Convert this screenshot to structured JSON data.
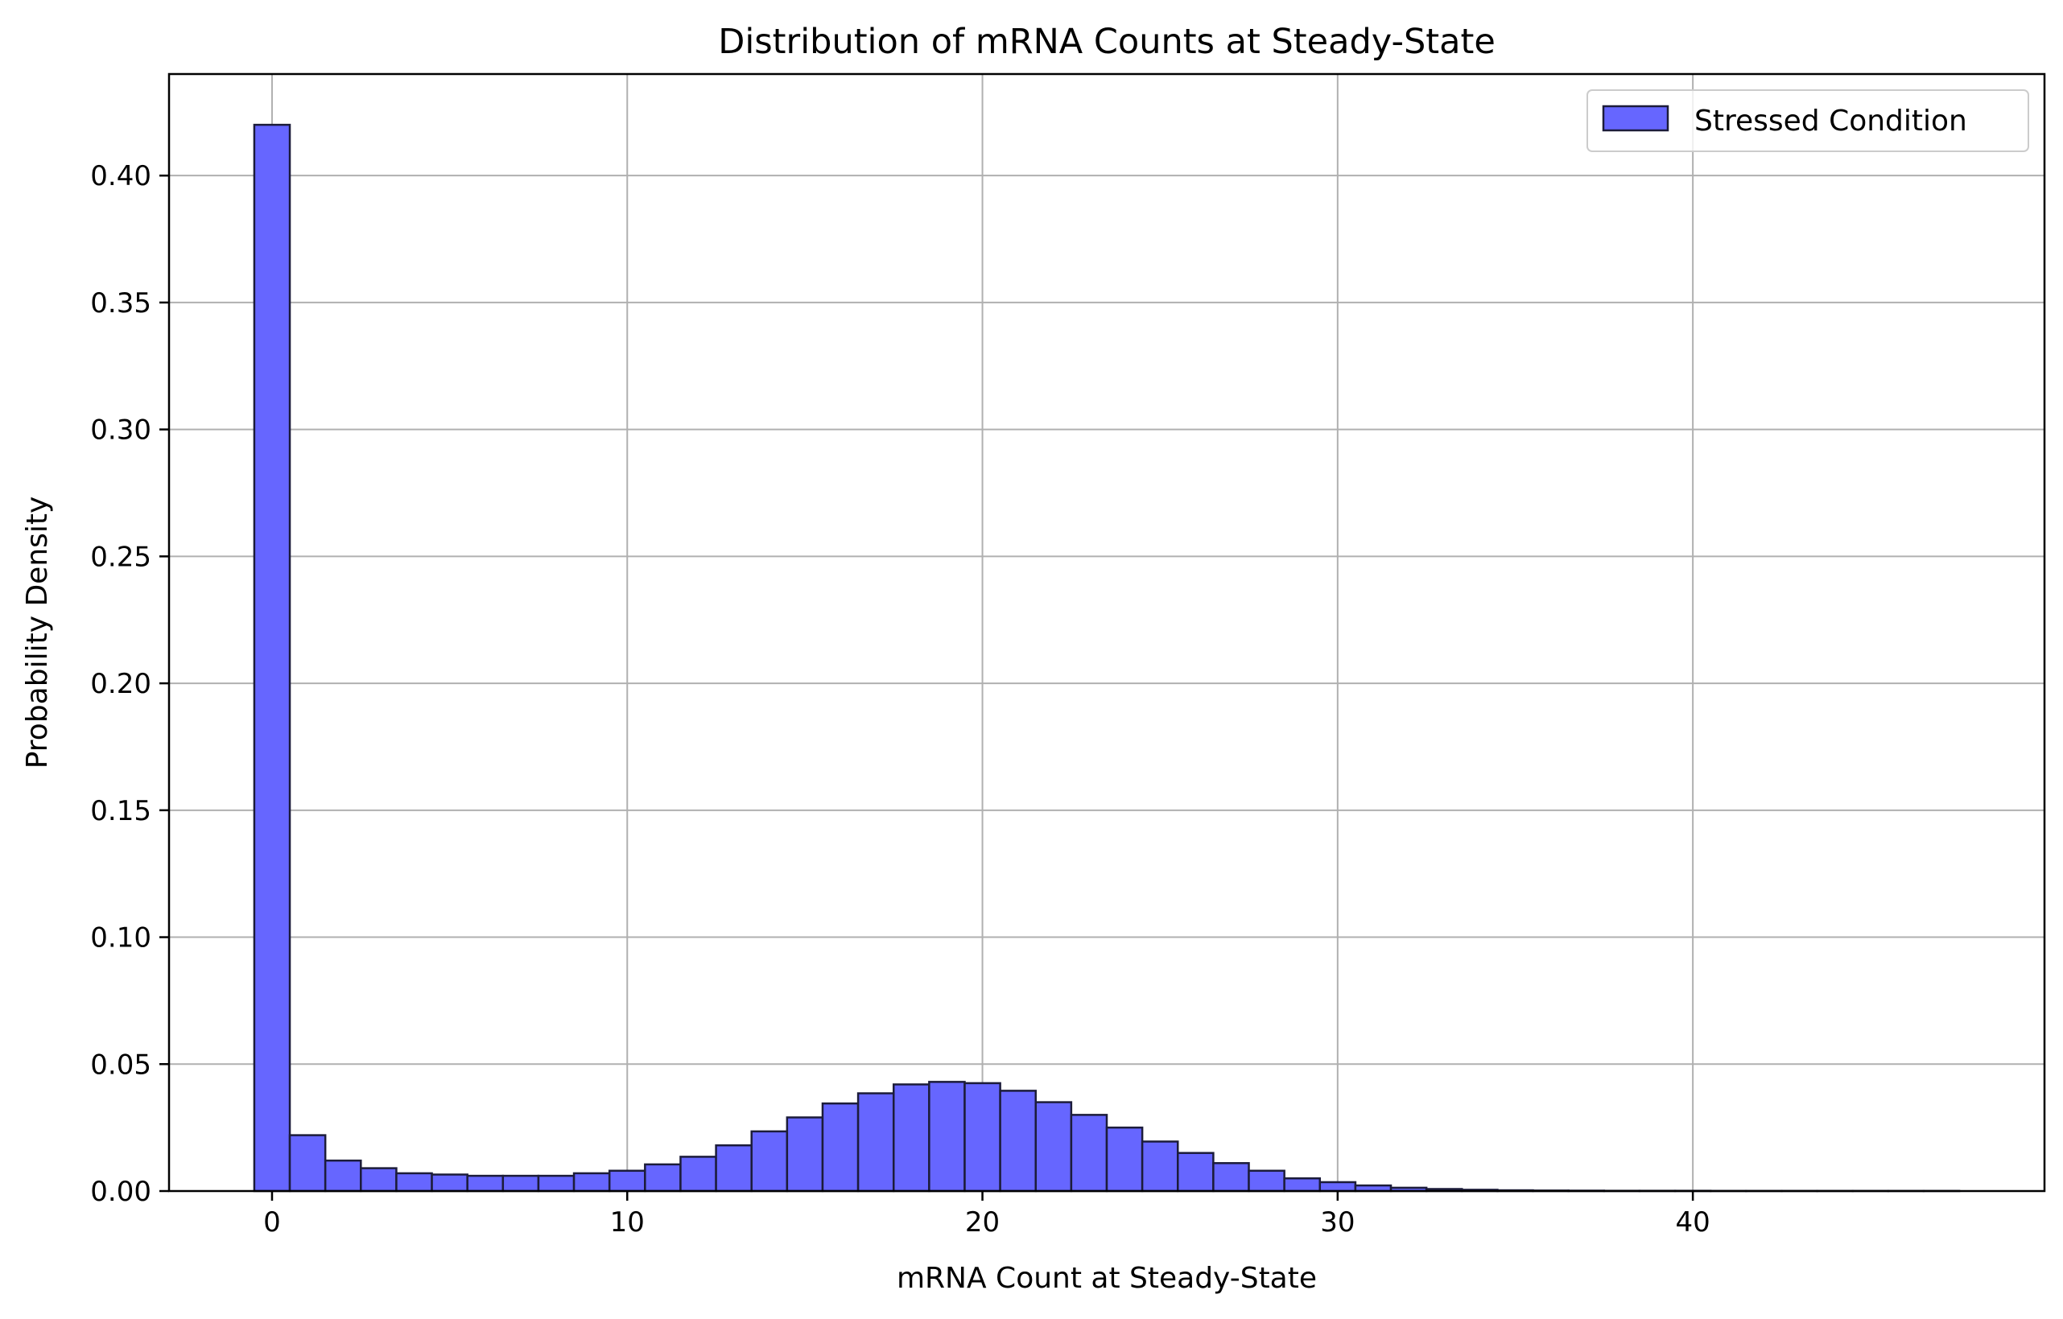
{
  "chart_data": {
    "type": "bar",
    "title": "Distribution of mRNA Counts at Steady-State",
    "xlabel": "mRNA Count at Steady-State",
    "ylabel": "Probability Density",
    "xlim": [
      -2.9,
      49.9
    ],
    "ylim": [
      0,
      0.44
    ],
    "xticks": [
      0,
      10,
      20,
      30,
      40
    ],
    "xtick_labels": [
      "0",
      "10",
      "20",
      "30",
      "40"
    ],
    "yticks": [
      0.0,
      0.05,
      0.1,
      0.15,
      0.2,
      0.25,
      0.3,
      0.35,
      0.4
    ],
    "ytick_labels": [
      "0.00",
      "0.05",
      "0.10",
      "0.15",
      "0.20",
      "0.25",
      "0.30",
      "0.35",
      "0.40"
    ],
    "grid": true,
    "legend": {
      "position": "top-right",
      "entries": [
        "Stressed Condition"
      ]
    },
    "series": [
      {
        "name": "Stressed Condition",
        "color": "#6666ff",
        "edge_color": "#1c1c3a",
        "bin_start": -0.5,
        "bin_width": 1.0,
        "values": [
          0.42,
          0.022,
          0.012,
          0.009,
          0.007,
          0.0065,
          0.006,
          0.006,
          0.006,
          0.007,
          0.008,
          0.0105,
          0.0135,
          0.018,
          0.0235,
          0.029,
          0.0345,
          0.0385,
          0.042,
          0.043,
          0.0425,
          0.0395,
          0.035,
          0.03,
          0.025,
          0.0195,
          0.015,
          0.011,
          0.008,
          0.005,
          0.0035,
          0.0022,
          0.0013,
          0.0008,
          0.0005,
          0.0003,
          0.0002,
          0.00015,
          0.0001,
          0.0001,
          0.0001,
          5e-05,
          5e-05,
          5e-05,
          5e-05,
          5e-05,
          5e-05,
          5e-05
        ]
      }
    ]
  }
}
